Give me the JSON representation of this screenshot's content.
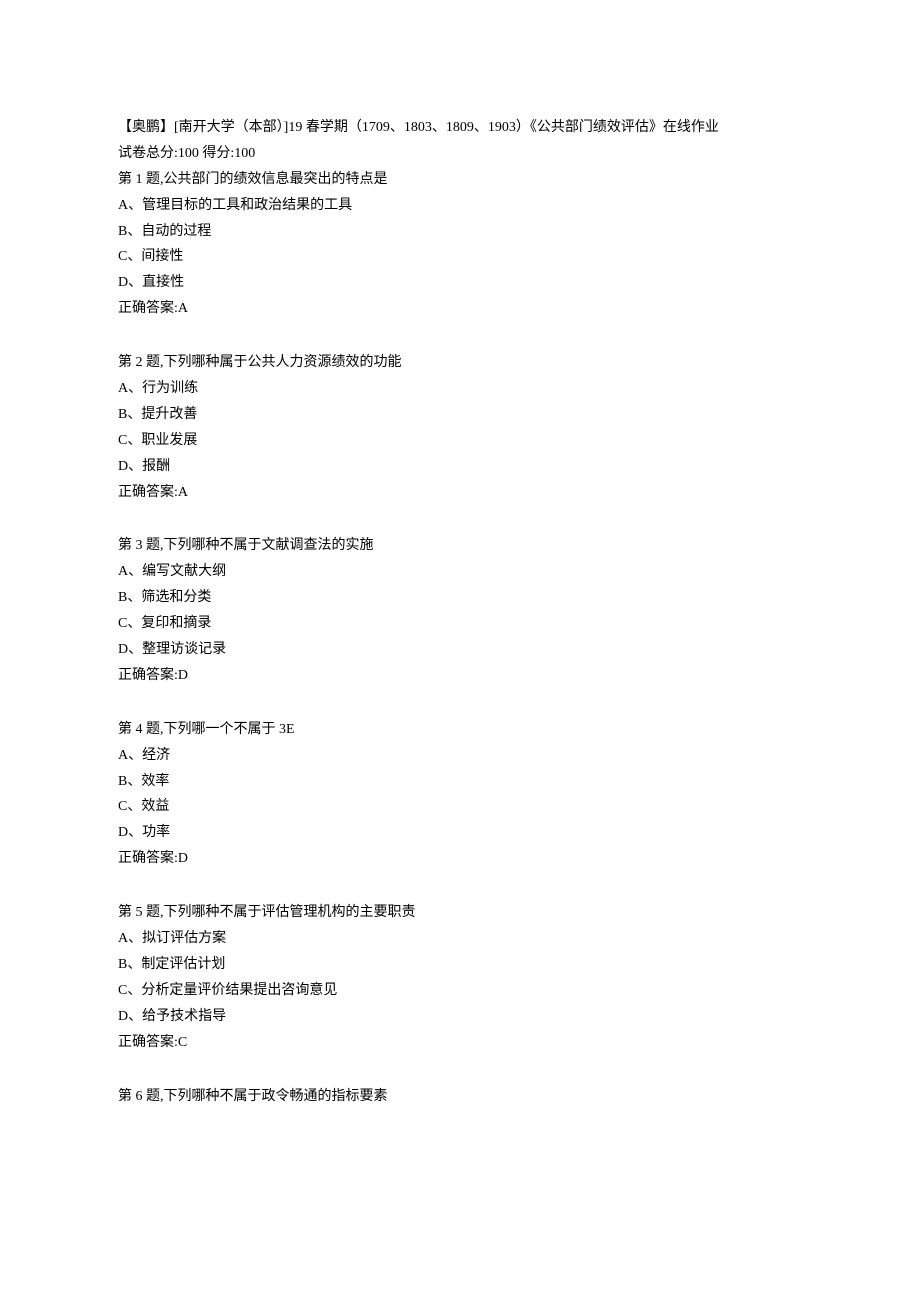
{
  "header": {
    "title": "【奥鹏】[南开大学（本部）]19 春学期（1709、1803、1809、1903）《公共部门绩效评估》在线作业",
    "score_line": "试卷总分:100    得分:100"
  },
  "questions": [
    {
      "prompt": "第 1 题,公共部门的绩效信息最突出的特点是",
      "options": [
        "A、管理目标的工具和政治结果的工具",
        "B、自动的过程",
        "C、间接性",
        "D、直接性"
      ],
      "answer": "正确答案:A"
    },
    {
      "prompt": "第 2 题,下列哪种属于公共人力资源绩效的功能",
      "options": [
        "A、行为训练",
        "B、提升改善",
        "C、职业发展",
        "D、报酬"
      ],
      "answer": "正确答案:A"
    },
    {
      "prompt": "第 3 题,下列哪种不属于文献调查法的实施",
      "options": [
        "A、编写文献大纲",
        "B、筛选和分类",
        "C、复印和摘录",
        "D、整理访谈记录"
      ],
      "answer": "正确答案:D"
    },
    {
      "prompt": "第 4 题,下列哪一个不属于 3E",
      "options": [
        "A、经济",
        "B、效率",
        "C、效益",
        "D、功率"
      ],
      "answer": "正确答案:D"
    },
    {
      "prompt": "第 5 题,下列哪种不属于评估管理机构的主要职责",
      "options": [
        "A、拟订评估方案",
        "B、制定评估计划",
        "C、分析定量评价结果提出咨询意见",
        "D、给予技术指导"
      ],
      "answer": "正确答案:C"
    },
    {
      "prompt": "第 6 题,下列哪种不属于政令畅通的指标要素",
      "options": [],
      "answer": ""
    }
  ]
}
